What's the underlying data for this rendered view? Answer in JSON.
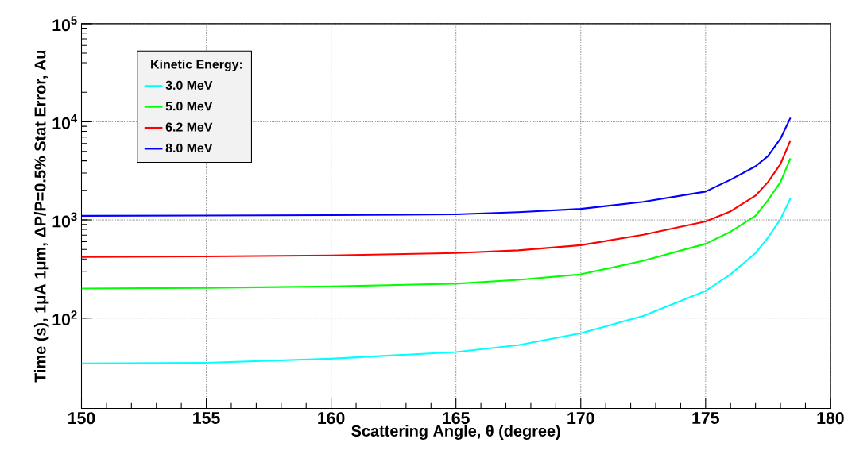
{
  "chart_data": {
    "type": "line",
    "xlabel": "Scattering Angle, θ (degree)",
    "ylabel": "Time (s), 1μA 1μm, ΔP/P=0.5% Stat Error, Au",
    "legend_title": "Kinetic Energy:",
    "x": [
      150,
      155,
      160,
      165,
      167.5,
      170,
      172.5,
      175,
      176,
      177,
      177.5,
      178,
      178.4
    ],
    "series": [
      {
        "name": "3.0 MeV",
        "color": "#00ffff",
        "values": [
          34.5,
          35,
          38.5,
          45,
          53,
          70,
          105,
          189,
          279,
          460,
          660,
          1020,
          1660
        ]
      },
      {
        "name": "5.0 MeV",
        "color": "#00ff00",
        "values": [
          200,
          203,
          210,
          224,
          245,
          279,
          383,
          571,
          758,
          1100,
          1590,
          2430,
          4240
        ]
      },
      {
        "name": "6.2 MeV",
        "color": "#ff0000",
        "values": [
          420,
          425,
          435,
          460,
          490,
          553,
          705,
          964,
          1225,
          1770,
          2430,
          3720,
          6460
        ]
      },
      {
        "name": "8.0 MeV",
        "color": "#0000ff",
        "values": [
          1100,
          1110,
          1120,
          1140,
          1200,
          1295,
          1530,
          1945,
          2570,
          3520,
          4470,
          6730,
          11000
        ]
      }
    ],
    "xlim": [
      150,
      180
    ],
    "xticks": [
      150,
      155,
      160,
      165,
      170,
      175,
      180
    ],
    "ylim": [
      12,
      100000
    ],
    "yticks": [
      {
        "value": 100,
        "label": "10$^{2}$"
      },
      {
        "value": 1000,
        "label": "10$^{3}$"
      },
      {
        "value": 10000,
        "label": "10$^{4}$"
      },
      {
        "value": 100000,
        "label": "10$^{5}$"
      }
    ],
    "log": "y",
    "grid": true,
    "legend": "top left",
    "marker": "none",
    "line_style": "solid"
  }
}
